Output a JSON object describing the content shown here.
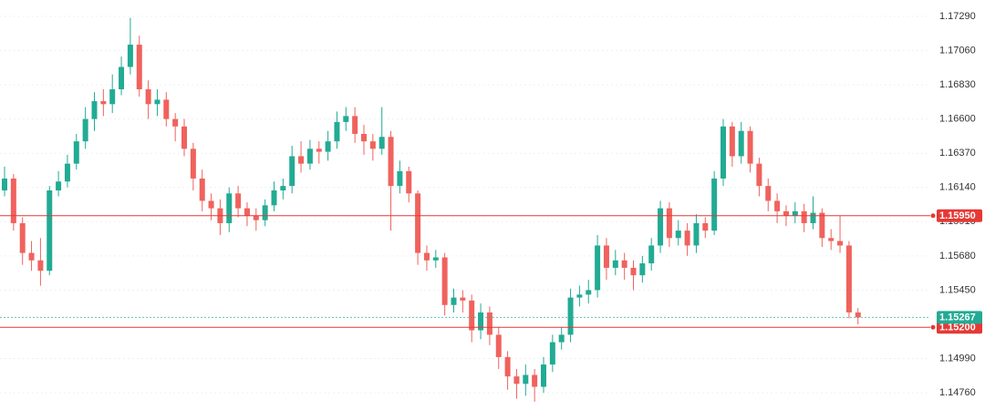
{
  "chart_data": {
    "type": "candlestick",
    "up_color": "#22ab94",
    "down_color": "#f0625d",
    "grid": true,
    "ylim": [
      1.14577,
      1.174
    ],
    "yticks": [
      {
        "value": 1.1729,
        "label": "1.17290"
      },
      {
        "value": 1.1706,
        "label": "1.17060"
      },
      {
        "value": 1.1683,
        "label": "1.16830"
      },
      {
        "value": 1.166,
        "label": "1.16600"
      },
      {
        "value": 1.1637,
        "label": "1.16370"
      },
      {
        "value": 1.1614,
        "label": "1.16140"
      },
      {
        "value": 1.1591,
        "label": "1.15910"
      },
      {
        "value": 1.1568,
        "label": "1.15680"
      },
      {
        "value": 1.1545,
        "label": "1.15450"
      },
      {
        "value": 1.1499,
        "label": "1.14990"
      },
      {
        "value": 1.1476,
        "label": "1.14760"
      }
    ],
    "open": [
      1.1612,
      1.162,
      1.159,
      1.157,
      1.1565,
      1.1558,
      1.1612,
      1.1618,
      1.163,
      1.1645,
      1.166,
      1.1672,
      1.167,
      1.168,
      1.1695,
      1.171,
      1.168,
      1.167,
      1.1673,
      1.166,
      1.1655,
      1.164,
      1.162,
      1.1605,
      1.16,
      1.159,
      1.161,
      1.16,
      1.1595,
      1.1592,
      1.1602,
      1.1612,
      1.1615,
      1.1635,
      1.163,
      1.164,
      1.1638,
      1.1645,
      1.1658,
      1.1662,
      1.165,
      1.1645,
      1.164,
      1.1648,
      1.1615,
      1.1625,
      1.161,
      1.157,
      1.1565,
      1.1567,
      1.1535,
      1.154,
      1.1538,
      1.1518,
      1.153,
      1.1515,
      1.15,
      1.1487,
      1.1482,
      1.1488,
      1.148,
      1.1495,
      1.151,
      1.1515,
      1.154,
      1.1542,
      1.1545,
      1.1575,
      1.156,
      1.1565,
      1.156,
      1.1555,
      1.1563,
      1.1575,
      1.16,
      1.158,
      1.1585,
      1.1575,
      1.159,
      1.1585,
      1.162,
      1.1655,
      1.1635,
      1.1652,
      1.163,
      1.1615,
      1.1605,
      1.1598,
      1.1595,
      1.1598,
      1.159,
      1.1597,
      1.158,
      1.1578,
      1.1575,
      1.153
    ],
    "high": [
      1.1628,
      1.1623,
      1.1594,
      1.1578,
      1.158,
      1.1615,
      1.1625,
      1.1636,
      1.165,
      1.1668,
      1.1678,
      1.168,
      1.169,
      1.1702,
      1.1728,
      1.1716,
      1.1686,
      1.168,
      1.1678,
      1.1664,
      1.166,
      1.1644,
      1.1626,
      1.161,
      1.1606,
      1.1614,
      1.1615,
      1.1604,
      1.16,
      1.1606,
      1.1618,
      1.162,
      1.1642,
      1.1645,
      1.1646,
      1.1645,
      1.1652,
      1.1665,
      1.1668,
      1.1668,
      1.1656,
      1.165,
      1.1668,
      1.1652,
      1.1632,
      1.1628,
      1.1612,
      1.1575,
      1.1572,
      1.157,
      1.1546,
      1.1545,
      1.1542,
      1.1536,
      1.1534,
      1.152,
      1.1504,
      1.1492,
      1.1495,
      1.1492,
      1.15,
      1.1515,
      1.152,
      1.1546,
      1.1548,
      1.1552,
      1.1582,
      1.158,
      1.1572,
      1.157,
      1.1565,
      1.1568,
      1.158,
      1.1605,
      1.1604,
      1.1592,
      1.159,
      1.1596,
      1.1594,
      1.1625,
      1.166,
      1.1658,
      1.1658,
      1.1655,
      1.1634,
      1.162,
      1.161,
      1.1602,
      1.1604,
      1.1603,
      1.1608,
      1.16,
      1.1586,
      1.1595,
      1.1578,
      1.1533
    ],
    "low": [
      1.1608,
      1.1585,
      1.1562,
      1.1558,
      1.1548,
      1.1555,
      1.1608,
      1.1614,
      1.1626,
      1.164,
      1.1652,
      1.1662,
      1.1664,
      1.1676,
      1.169,
      1.1675,
      1.166,
      1.1662,
      1.1655,
      1.1645,
      1.1635,
      1.1612,
      1.1598,
      1.1592,
      1.1582,
      1.1584,
      1.1594,
      1.1588,
      1.1585,
      1.1588,
      1.1598,
      1.1606,
      1.161,
      1.1624,
      1.1626,
      1.163,
      1.1632,
      1.164,
      1.1652,
      1.1644,
      1.1636,
      1.1632,
      1.1636,
      1.1585,
      1.161,
      1.1604,
      1.1562,
      1.1558,
      1.156,
      1.1528,
      1.153,
      1.153,
      1.151,
      1.1512,
      1.1508,
      1.1492,
      1.1478,
      1.1472,
      1.1474,
      1.147,
      1.1476,
      1.149,
      1.1505,
      1.151,
      1.1534,
      1.1536,
      1.154,
      1.1552,
      1.1555,
      1.1552,
      1.1545,
      1.155,
      1.1558,
      1.157,
      1.1574,
      1.1575,
      1.1568,
      1.157,
      1.158,
      1.1582,
      1.1615,
      1.1628,
      1.163,
      1.1624,
      1.1608,
      1.1598,
      1.159,
      1.1588,
      1.159,
      1.1584,
      1.1586,
      1.1574,
      1.1572,
      1.157,
      1.1526,
      1.1522
    ],
    "close": [
      1.162,
      1.159,
      1.157,
      1.1565,
      1.1558,
      1.1612,
      1.1618,
      1.163,
      1.1645,
      1.166,
      1.1672,
      1.167,
      1.168,
      1.1695,
      1.171,
      1.168,
      1.167,
      1.1673,
      1.166,
      1.1655,
      1.164,
      1.162,
      1.1605,
      1.16,
      1.159,
      1.161,
      1.16,
      1.1595,
      1.1592,
      1.1602,
      1.1612,
      1.1615,
      1.1635,
      1.163,
      1.164,
      1.1638,
      1.1645,
      1.1658,
      1.1662,
      1.165,
      1.1645,
      1.164,
      1.1648,
      1.1615,
      1.1625,
      1.161,
      1.157,
      1.1565,
      1.1567,
      1.1535,
      1.154,
      1.1538,
      1.1518,
      1.153,
      1.1515,
      1.15,
      1.1487,
      1.1482,
      1.1488,
      1.148,
      1.1495,
      1.151,
      1.1515,
      1.154,
      1.1542,
      1.1545,
      1.1575,
      1.156,
      1.1565,
      1.156,
      1.1555,
      1.1563,
      1.1575,
      1.16,
      1.158,
      1.1585,
      1.1575,
      1.159,
      1.1585,
      1.162,
      1.1655,
      1.1635,
      1.1652,
      1.163,
      1.1615,
      1.1605,
      1.1598,
      1.1595,
      1.1598,
      1.159,
      1.1597,
      1.158,
      1.1578,
      1.1575,
      1.153,
      1.15267
    ],
    "price_lines": [
      {
        "value": 1.1595,
        "label": "1.15950",
        "color": "#e53935",
        "style": "solid"
      },
      {
        "value": 1.152,
        "label": "1.15200",
        "color": "#e53935",
        "style": "solid"
      },
      {
        "value": 1.15267,
        "label": "1.15267",
        "color": "#22ab94",
        "style": "dotted"
      }
    ]
  }
}
